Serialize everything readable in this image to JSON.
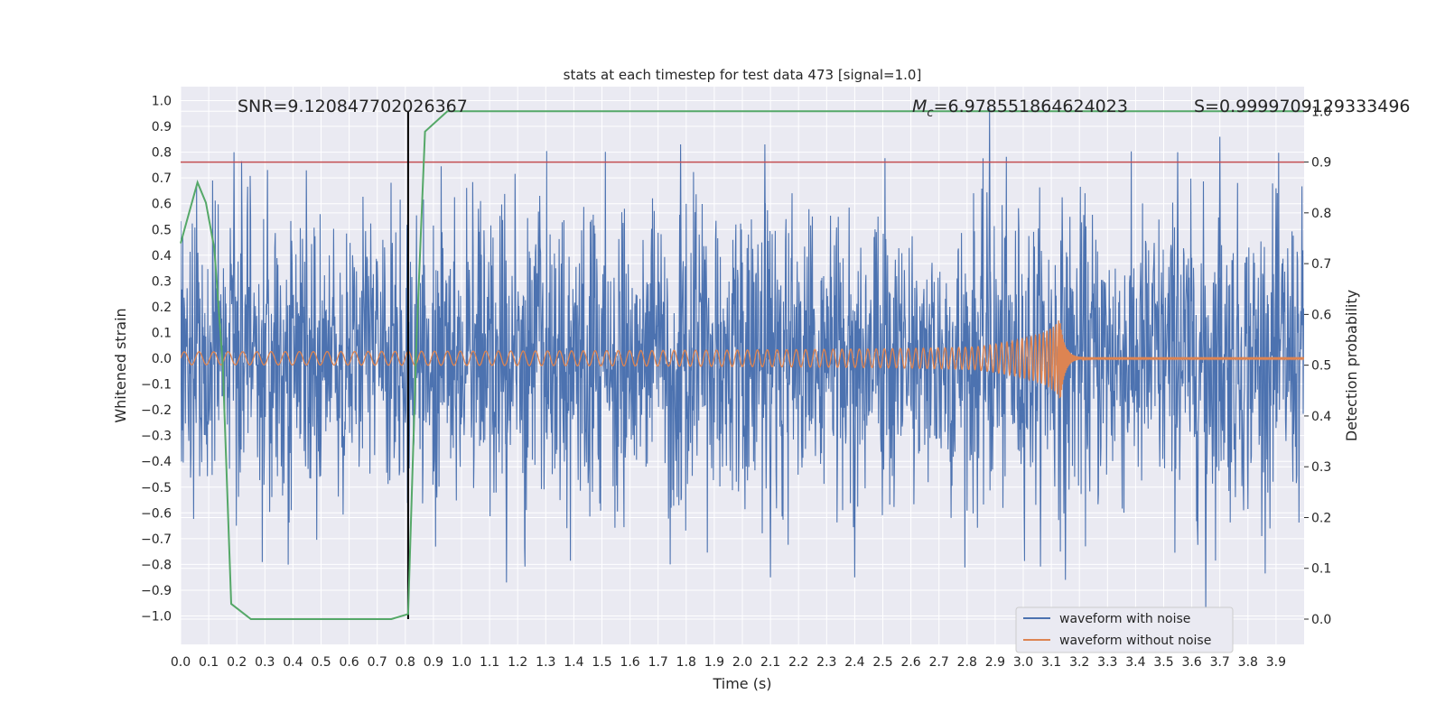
{
  "chart_data": {
    "type": "line",
    "title": "stats at each timestep for test data 473 [signal=1.0]",
    "xlabel": "Time (s)",
    "ylabel_left": "Whitened strain",
    "ylabel_right": "Detection probability",
    "xlim": [
      0.0,
      4.0
    ],
    "ylim_left": [
      -1.09,
      1.05
    ],
    "ylim_right": [
      -0.05,
      1.05
    ],
    "x_ticks": [
      "0.0",
      "0.1",
      "0.2",
      "0.3",
      "0.4",
      "0.5",
      "0.6",
      "0.7",
      "0.8",
      "0.9",
      "1.0",
      "1.1",
      "1.2",
      "1.3",
      "1.4",
      "1.5",
      "1.6",
      "1.7",
      "1.8",
      "1.9",
      "2.0",
      "2.1",
      "2.2",
      "2.3",
      "2.4",
      "2.5",
      "2.6",
      "2.7",
      "2.8",
      "2.9",
      "3.0",
      "3.1",
      "3.2",
      "3.3",
      "3.4",
      "3.5",
      "3.6",
      "3.7",
      "3.8",
      "3.9"
    ],
    "y_ticks_left": [
      "1.0",
      "0.9",
      "0.8",
      "0.7",
      "0.6",
      "0.5",
      "0.4",
      "0.3",
      "0.2",
      "0.1",
      "0.0",
      "−0.1",
      "−0.2",
      "−0.3",
      "−0.4",
      "−0.5",
      "−0.6",
      "−0.7",
      "−0.8",
      "−0.9",
      "−1.0"
    ],
    "y_ticks_right": [
      "1.0",
      "0.9",
      "0.8",
      "0.7",
      "0.6",
      "0.5",
      "0.4",
      "0.3",
      "0.2",
      "0.1",
      "0.0"
    ],
    "annotations": {
      "snr": "SNR=9.120847702026367",
      "mc_symbol": "M",
      "mc_sub": "c",
      "mc_value": "=6.978551864624023",
      "s": "S=0.9999709129333496"
    },
    "grid": true,
    "legend_position": "lower-right",
    "series": [
      {
        "name": "waveform with noise",
        "axis": "left",
        "color": "#4c72b0",
        "noise_amplitude": 0.3,
        "peaks": [
          [
            0.19,
            0.8
          ],
          [
            1.06,
            0.58
          ],
          [
            1.16,
            -0.87
          ],
          [
            1.78,
            0.83
          ],
          [
            2.08,
            0.83
          ],
          [
            2.1,
            -0.85
          ],
          [
            2.4,
            -0.85
          ],
          [
            2.88,
            0.97
          ],
          [
            3.15,
            -0.86
          ],
          [
            3.55,
            0.8
          ],
          [
            3.65,
            -1.0
          ],
          [
            3.7,
            0.86
          ],
          [
            3.9,
            0.66
          ]
        ]
      },
      {
        "name": "waveform without noise",
        "axis": "left",
        "color": "#dd8452",
        "chirp": {
          "start": 0.0,
          "merger": 3.13,
          "end": 4.0,
          "amp_start": 0.025,
          "amp_merger": 0.3,
          "amp_after": 0.008
        }
      },
      {
        "name": "detection probability",
        "axis": "right",
        "color": "#55a868",
        "x": [
          0.0,
          0.06,
          0.09,
          0.12,
          0.15,
          0.18,
          0.25,
          0.75,
          0.81,
          0.84,
          0.87,
          0.93,
          0.95,
          4.0
        ],
        "y": [
          0.74,
          0.86,
          0.82,
          0.73,
          0.5,
          0.03,
          0.0,
          0.0,
          0.01,
          0.55,
          0.96,
          0.99,
          1.0,
          1.0
        ]
      }
    ],
    "threshold_line": {
      "axis": "right",
      "value": 0.9,
      "color": "#c44e52"
    },
    "vertical_marker": {
      "x": 0.81,
      "color": "#000000"
    }
  }
}
